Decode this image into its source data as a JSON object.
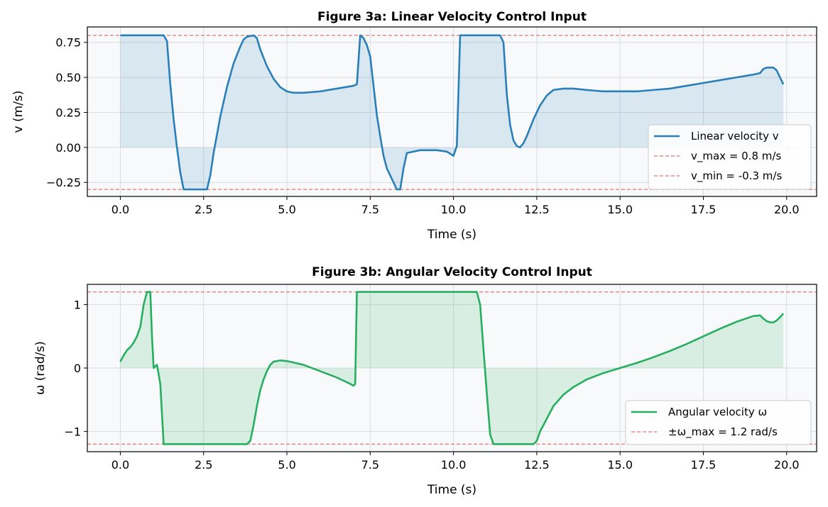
{
  "chart_data": [
    {
      "type": "line",
      "title": "Figure 3a: Linear Velocity Control Input",
      "xlabel": "Time (s)",
      "ylabel": "v (m/s)",
      "xlim": [
        -0.99,
        20.9
      ],
      "ylim": [
        -0.35,
        0.86
      ],
      "xticks": [
        0.0,
        2.5,
        5.0,
        7.5,
        10.0,
        12.5,
        15.0,
        17.5,
        20.0
      ],
      "xtick_labels": [
        "0.0",
        "2.5",
        "5.0",
        "7.5",
        "10.0",
        "12.5",
        "15.0",
        "17.5",
        "20.0"
      ],
      "yticks": [
        -0.25,
        0.0,
        0.25,
        0.5,
        0.75
      ],
      "ytick_labels": [
        "−0.25",
        "0.00",
        "0.25",
        "0.50",
        "0.75"
      ],
      "grid": true,
      "legend_position": "lower-right",
      "fill_to_zero": true,
      "series": [
        {
          "name": "Linear velocity v",
          "color": "#2a7fb8",
          "style": "solid",
          "x": [
            0.0,
            1.3,
            1.4,
            1.5,
            1.6,
            1.7,
            1.8,
            1.9,
            2.0,
            2.6,
            2.7,
            2.8,
            3.0,
            3.2,
            3.4,
            3.6,
            3.7,
            3.8,
            4.0,
            4.1,
            4.2,
            4.4,
            4.6,
            4.8,
            5.0,
            5.2,
            5.5,
            6.0,
            6.5,
            7.0,
            7.1,
            7.2,
            7.3,
            7.4,
            7.5,
            7.7,
            7.8,
            7.9,
            8.0,
            8.3,
            8.35,
            8.4,
            8.5,
            8.6,
            9.0,
            9.5,
            9.8,
            10.0,
            10.1,
            10.2,
            11.4,
            11.5,
            11.6,
            11.7,
            11.8,
            11.9,
            12.0,
            12.1,
            12.2,
            12.4,
            12.6,
            12.8,
            13.0,
            13.3,
            13.6,
            14.0,
            14.5,
            15.0,
            15.5,
            16.0,
            16.5,
            17.0,
            17.5,
            18.0,
            18.5,
            19.0,
            19.2,
            19.3,
            19.4,
            19.5,
            19.6,
            19.7,
            19.8,
            19.9
          ],
          "values": [
            0.8,
            0.8,
            0.76,
            0.45,
            0.2,
            0.0,
            -0.18,
            -0.3,
            -0.3,
            -0.3,
            -0.2,
            -0.04,
            0.22,
            0.43,
            0.6,
            0.72,
            0.77,
            0.79,
            0.8,
            0.78,
            0.7,
            0.58,
            0.49,
            0.43,
            0.4,
            0.39,
            0.39,
            0.4,
            0.42,
            0.44,
            0.45,
            0.8,
            0.78,
            0.73,
            0.65,
            0.23,
            0.08,
            -0.06,
            -0.15,
            -0.3,
            -0.3,
            -0.3,
            -0.15,
            -0.04,
            -0.02,
            -0.02,
            -0.03,
            -0.06,
            0.01,
            0.8,
            0.8,
            0.75,
            0.38,
            0.16,
            0.05,
            0.01,
            0.0,
            0.03,
            0.08,
            0.2,
            0.3,
            0.37,
            0.41,
            0.42,
            0.42,
            0.41,
            0.4,
            0.4,
            0.4,
            0.41,
            0.42,
            0.44,
            0.46,
            0.48,
            0.5,
            0.52,
            0.53,
            0.56,
            0.57,
            0.57,
            0.57,
            0.55,
            0.5,
            0.45
          ]
        },
        {
          "name": "v_max = 0.8 m/s",
          "color": "#e8726a",
          "style": "dashed",
          "y": 0.8
        },
        {
          "name": "v_min = -0.3 m/s",
          "color": "#e8726a",
          "style": "dashed",
          "y": -0.3
        }
      ]
    },
    {
      "type": "line",
      "title": "Figure 3b: Angular Velocity Control Input",
      "xlabel": "Time (s)",
      "ylabel": "ω (rad/s)",
      "xlim": [
        -0.99,
        20.9
      ],
      "ylim": [
        -1.32,
        1.32
      ],
      "xticks": [
        0.0,
        2.5,
        5.0,
        7.5,
        10.0,
        12.5,
        15.0,
        17.5,
        20.0
      ],
      "xtick_labels": [
        "0.0",
        "2.5",
        "5.0",
        "7.5",
        "10.0",
        "12.5",
        "15.0",
        "17.5",
        "20.0"
      ],
      "yticks": [
        -1,
        0,
        1
      ],
      "ytick_labels": [
        "−1",
        "0",
        "1"
      ],
      "grid": true,
      "legend_position": "lower-right",
      "fill_to_zero": true,
      "series": [
        {
          "name": "Angular velocity ω",
          "color": "#27ae60",
          "style": "solid",
          "x": [
            0.0,
            0.1,
            0.2,
            0.3,
            0.4,
            0.5,
            0.6,
            0.7,
            0.8,
            0.9,
            0.95,
            1.0,
            1.05,
            1.1,
            1.2,
            1.3,
            3.8,
            3.9,
            4.0,
            4.1,
            4.2,
            4.3,
            4.4,
            4.5,
            4.6,
            4.8,
            5.0,
            5.5,
            6.0,
            6.5,
            6.9,
            7.0,
            7.05,
            7.1,
            10.7,
            10.8,
            10.9,
            11.0,
            11.1,
            11.2,
            12.4,
            12.5,
            12.6,
            12.8,
            13.0,
            13.3,
            13.6,
            14.0,
            14.5,
            15.0,
            15.5,
            16.0,
            16.5,
            17.0,
            17.5,
            18.0,
            18.5,
            19.0,
            19.2,
            19.3,
            19.4,
            19.5,
            19.6,
            19.7,
            19.8,
            19.9
          ],
          "values": [
            0.1,
            0.2,
            0.28,
            0.33,
            0.4,
            0.5,
            0.65,
            1.0,
            1.2,
            1.2,
            0.5,
            0.0,
            0.03,
            0.05,
            -0.25,
            -1.2,
            -1.2,
            -1.15,
            -0.9,
            -0.6,
            -0.35,
            -0.18,
            -0.05,
            0.05,
            0.1,
            0.12,
            0.11,
            0.05,
            -0.05,
            -0.15,
            -0.25,
            -0.28,
            -0.25,
            1.2,
            1.2,
            1.0,
            0.3,
            -0.4,
            -1.05,
            -1.2,
            -1.2,
            -1.15,
            -1.0,
            -0.8,
            -0.6,
            -0.42,
            -0.3,
            -0.18,
            -0.08,
            0.0,
            0.08,
            0.17,
            0.27,
            0.38,
            0.5,
            0.62,
            0.73,
            0.82,
            0.83,
            0.78,
            0.74,
            0.72,
            0.72,
            0.75,
            0.8,
            0.86
          ]
        },
        {
          "name": "±ω_max = 1.2 rad/s",
          "color": "#e8726a",
          "style": "dashed",
          "y": 1.2
        },
        {
          "name": "",
          "color": "#e8726a",
          "style": "dashed",
          "y": -1.2
        }
      ]
    }
  ]
}
